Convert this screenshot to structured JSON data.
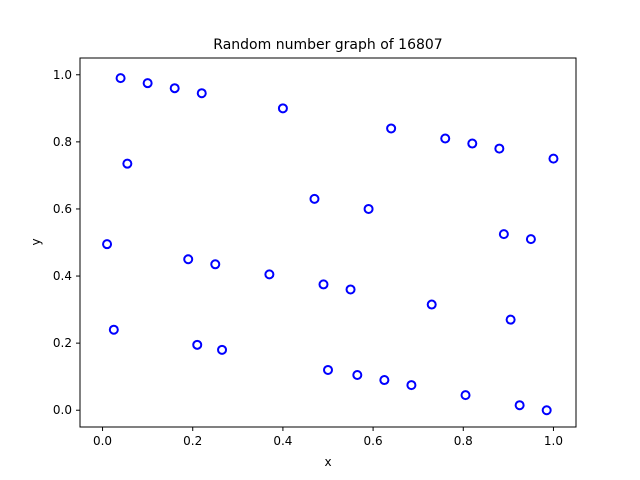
{
  "chart_data": {
    "type": "scatter",
    "title": "Random number graph of 16807",
    "xlabel": "x",
    "ylabel": "y",
    "xlim": [
      -0.05,
      1.05
    ],
    "ylim": [
      -0.05,
      1.05
    ],
    "xticks": [
      0.0,
      0.2,
      0.4,
      0.6,
      0.8,
      1.0
    ],
    "yticks": [
      0.0,
      0.2,
      0.4,
      0.6,
      0.8,
      1.0
    ],
    "xtick_labels": [
      "0.0",
      "0.2",
      "0.4",
      "0.6",
      "0.8",
      "1.0"
    ],
    "ytick_labels": [
      "0.0",
      "0.2",
      "0.4",
      "0.6",
      "0.8",
      "1.0"
    ],
    "grid": false,
    "marker": "hollow-circle",
    "color": "#0000ff",
    "x": [
      0.04,
      0.1,
      0.16,
      0.22,
      0.4,
      0.64,
      0.76,
      0.82,
      0.88,
      1.0,
      0.055,
      0.47,
      0.59,
      0.01,
      0.89,
      0.95,
      0.19,
      0.25,
      0.37,
      0.49,
      0.55,
      0.73,
      0.025,
      0.21,
      0.265,
      0.905,
      0.5,
      0.565,
      0.625,
      0.685,
      0.805,
      0.925,
      0.985
    ],
    "y": [
      0.99,
      0.975,
      0.96,
      0.945,
      0.9,
      0.84,
      0.81,
      0.795,
      0.78,
      0.75,
      0.735,
      0.63,
      0.6,
      0.495,
      0.525,
      0.51,
      0.45,
      0.435,
      0.405,
      0.375,
      0.36,
      0.315,
      0.24,
      0.195,
      0.18,
      0.27,
      0.12,
      0.105,
      0.09,
      0.075,
      0.045,
      0.015,
      0.0
    ]
  }
}
